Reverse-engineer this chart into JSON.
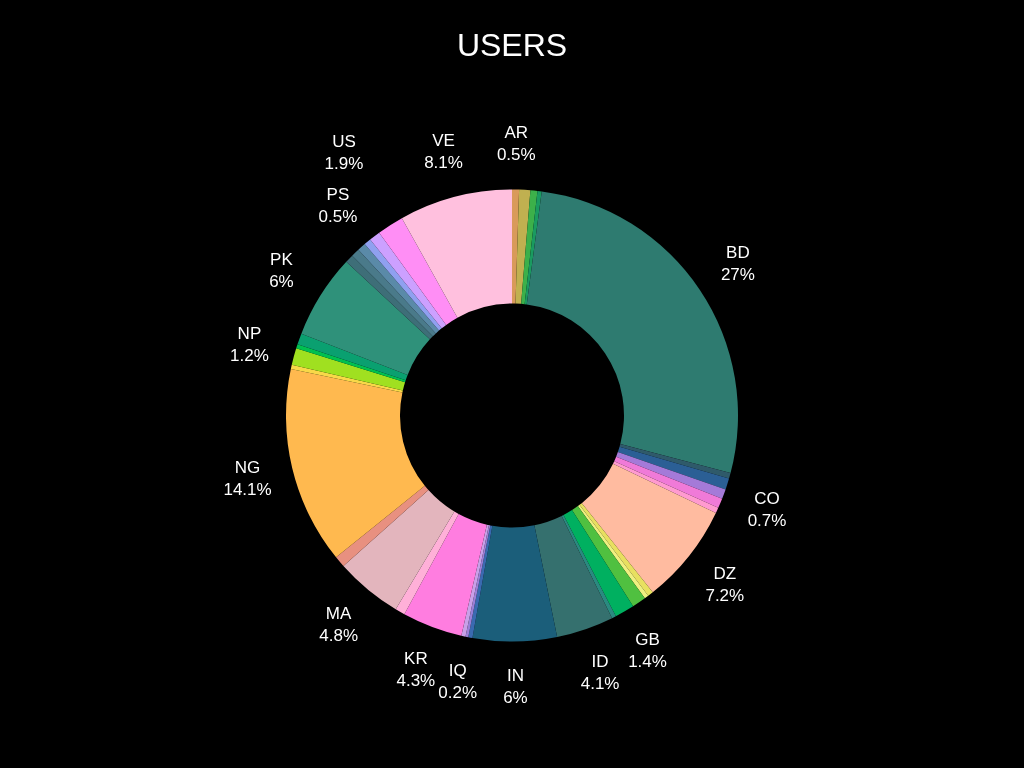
{
  "chart_data": {
    "type": "donut",
    "title": "USERS",
    "legend": false,
    "categories": [
      "AR",
      null,
      null,
      null,
      "BD",
      null,
      null,
      "CO",
      null,
      null,
      "DZ",
      null,
      null,
      null,
      "GB",
      null,
      "ID",
      "IN",
      null,
      "IQ",
      null,
      "KR",
      null,
      "MA",
      null,
      "NG",
      null,
      "NP",
      null,
      null,
      "PK",
      null,
      null,
      null,
      "PS",
      null,
      "US",
      "VE"
    ],
    "values": [
      0.5,
      0.8,
      0.5,
      0.3,
      27,
      0.4,
      0.8,
      0.7,
      0.7,
      0.4,
      7.2,
      0.4,
      0.3,
      1.0,
      1.4,
      0.3,
      4.1,
      6,
      0.3,
      0.2,
      0.3,
      4.3,
      0.7,
      4.8,
      0.8,
      14.1,
      0.3,
      1.2,
      0.3,
      0.8,
      6,
      0.6,
      0.6,
      0.6,
      0.5,
      0.8,
      1.9,
      8.1
    ],
    "value_labels": [
      "0.5%",
      null,
      null,
      null,
      "27%",
      null,
      null,
      "0.7%",
      null,
      null,
      "7.2%",
      null,
      null,
      null,
      "1.4%",
      null,
      "4.1%",
      "6%",
      null,
      "0.2%",
      null,
      "4.3%",
      null,
      "4.8%",
      null,
      "14.1%",
      null,
      "1.2%",
      null,
      null,
      "6%",
      null,
      null,
      null,
      "0.5%",
      null,
      "1.9%",
      "8.1%"
    ],
    "colors": [
      "#d99a5a",
      "#c0b050",
      "#3cb04a",
      "#1a9a60",
      "#2e7b70",
      "#2f5a6a",
      "#2b5f95",
      "#a47ad8",
      "#f07ad8",
      "#ff9ad0",
      "#ffbba0",
      "#e8e060",
      "#f0f080",
      "#50c040",
      "#00b060",
      "#2a8a80",
      "#35706e",
      "#1b5e7a",
      "#3a6ab0",
      "#9a80d8",
      "#c8a0e8",
      "#ff7de0",
      "#ffb0d8",
      "#e3b5bd",
      "#e89080",
      "#ffb94f",
      "#f8d848",
      "#a0e020",
      "#00c050",
      "#0aa070",
      "#2f917a",
      "#3e6e78",
      "#4a7a8a",
      "#5a8aa8",
      "#8fa0f0",
      "#cca0ff",
      "#ff8ef5",
      "#ffc0de"
    ]
  }
}
